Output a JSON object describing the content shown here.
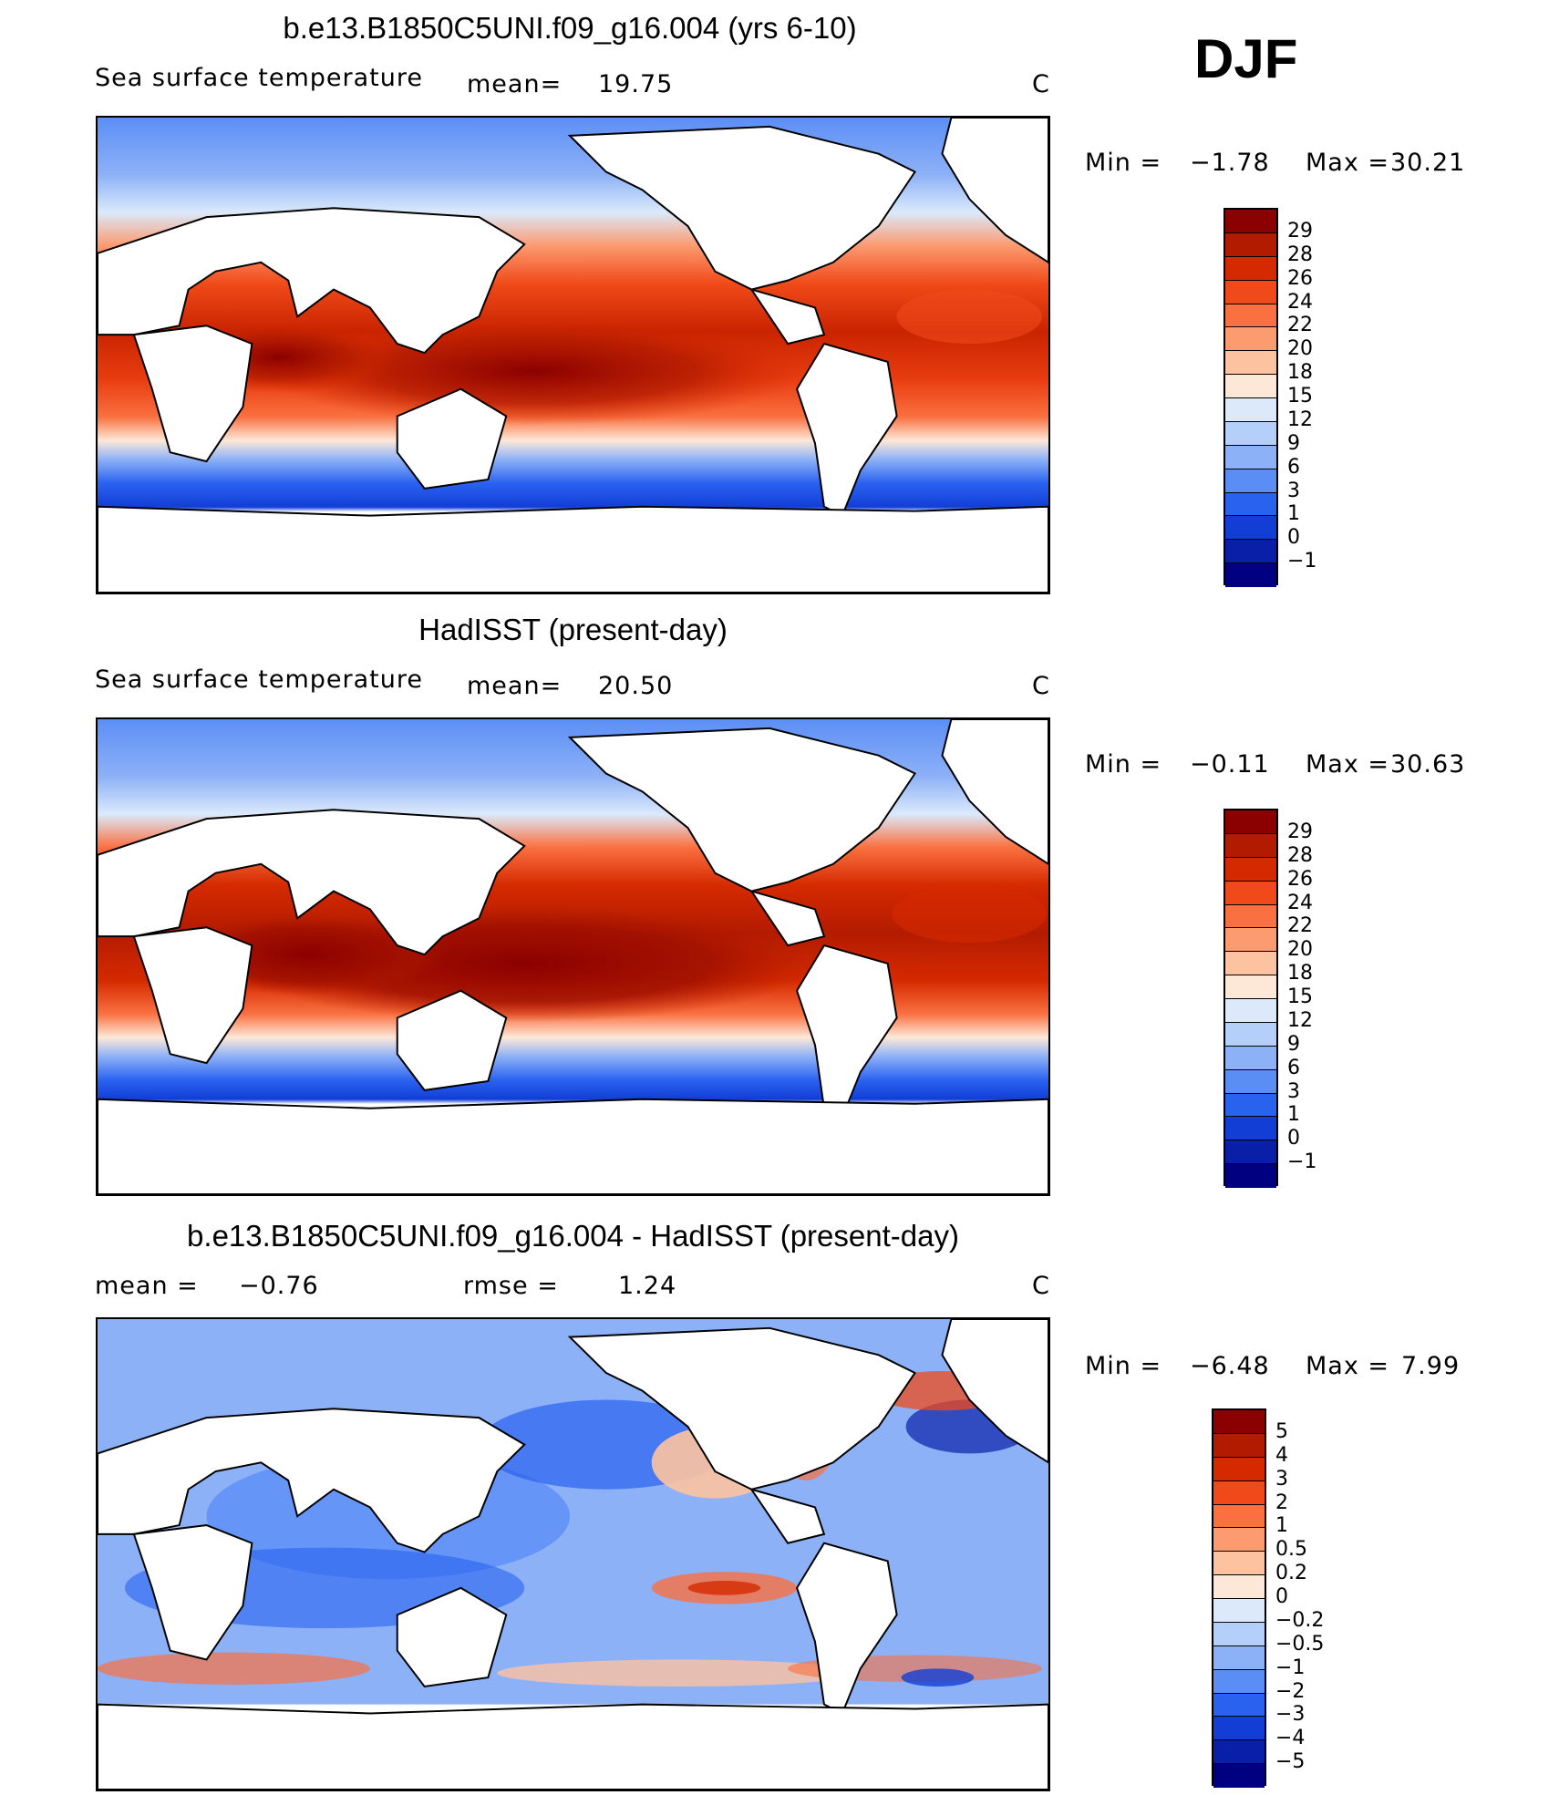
{
  "season": "DJF",
  "panels": [
    {
      "title": "b.e13.B1850C5UNI.f09_g16.004 (yrs 6-10)",
      "left_label": "Sea surface temperature",
      "mean_label": "mean=",
      "mean_value": "19.75",
      "units": "C",
      "min_label": "Min =",
      "min_value": "−1.78",
      "max_label": "Max =",
      "max_value": "30.21",
      "colorbar_labels": [
        "29",
        "28",
        "26",
        "24",
        "22",
        "20",
        "18",
        "15",
        "12",
        "9",
        "6",
        "3",
        "1",
        "0",
        "−1"
      ],
      "colorbar_colors": [
        "#8b0000",
        "#b31b00",
        "#d52a00",
        "#f04a1a",
        "#fa7040",
        "#fc9a70",
        "#fdc3a0",
        "#fde8d8",
        "#dbe9fb",
        "#b4cffa",
        "#8db1f7",
        "#5b8ef5",
        "#2a62f0",
        "#123ed6",
        "#0a1fa8",
        "#000080"
      ],
      "map_style": "model"
    },
    {
      "title": "HadISST (present-day)",
      "left_label": "Sea surface temperature",
      "mean_label": "mean=",
      "mean_value": "20.50",
      "units": "C",
      "min_label": "Min =",
      "min_value": "−0.11",
      "max_label": "Max =",
      "max_value": "30.63",
      "colorbar_labels": [
        "29",
        "28",
        "26",
        "24",
        "22",
        "20",
        "18",
        "15",
        "12",
        "9",
        "6",
        "3",
        "1",
        "0",
        "−1"
      ],
      "colorbar_colors": [
        "#8b0000",
        "#b31b00",
        "#d52a00",
        "#f04a1a",
        "#fa7040",
        "#fc9a70",
        "#fdc3a0",
        "#fde8d8",
        "#dbe9fb",
        "#b4cffa",
        "#8db1f7",
        "#5b8ef5",
        "#2a62f0",
        "#123ed6",
        "#0a1fa8",
        "#000080"
      ],
      "map_style": "obs"
    },
    {
      "title": "b.e13.B1850C5UNI.f09_g16.004 - HadISST (present-day)",
      "left_label": "mean =",
      "left_value": "−0.76",
      "rmse_label": "rmse =",
      "rmse_value": "1.24",
      "units": "C",
      "min_label": "Min =",
      "min_value": "−6.48",
      "max_label": "Max =",
      "max_value": "7.99",
      "colorbar_labels": [
        "5",
        "4",
        "3",
        "2",
        "1",
        "0.5",
        "0.2",
        "0",
        "−0.2",
        "−0.5",
        "−1",
        "−2",
        "−3",
        "−4",
        "−5"
      ],
      "colorbar_colors": [
        "#8b0000",
        "#b31b00",
        "#d52a00",
        "#f04a1a",
        "#fa7040",
        "#fc9a70",
        "#fdc3a0",
        "#fde8d8",
        "#dbe9fb",
        "#b4cffa",
        "#8db1f7",
        "#5b8ef5",
        "#2a62f0",
        "#123ed6",
        "#0a1fa8",
        "#000080"
      ],
      "map_style": "diff"
    }
  ]
}
